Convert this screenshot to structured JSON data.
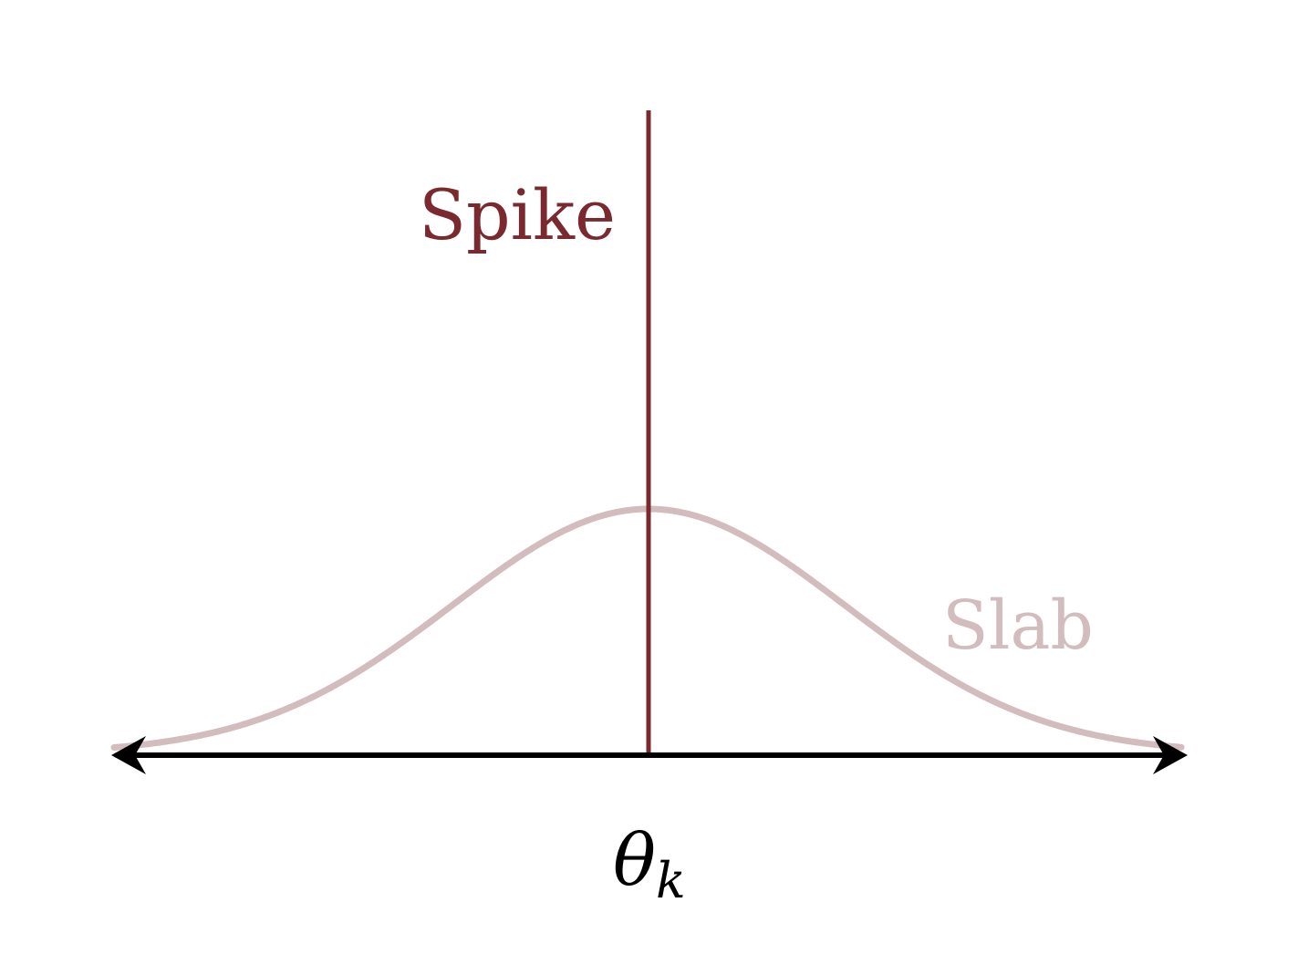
{
  "diagram": {
    "spike_label": "Spike",
    "slab_label": "Slab",
    "axis_label": {
      "symbol": "θ",
      "subscript": "k"
    },
    "colors": {
      "spike": "#7a2a2e",
      "slab": "#d2bcbe",
      "axis": "#000000"
    }
  }
}
